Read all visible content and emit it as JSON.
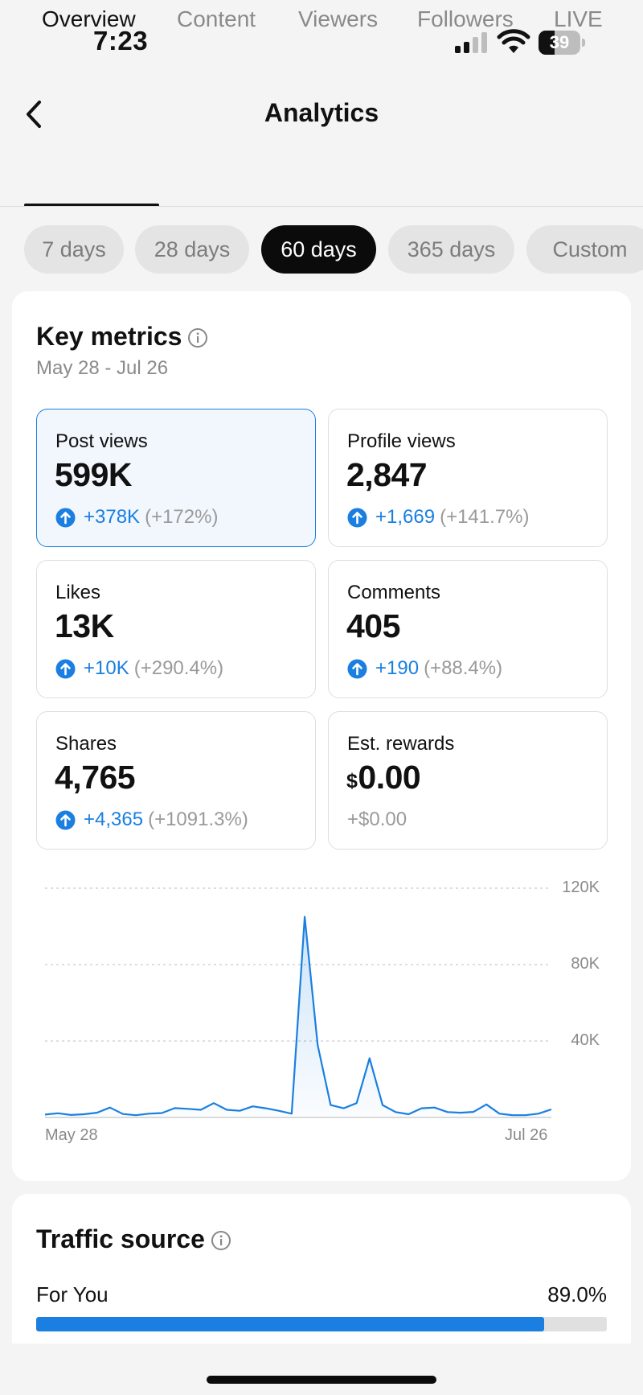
{
  "status_bar": {
    "time": "7:23",
    "battery_level": "39",
    "battery_fraction": 0.39,
    "icons": [
      "cellular-signal-icon",
      "wifi-icon",
      "battery-icon"
    ]
  },
  "header": {
    "title": "Analytics",
    "back_icon": "chevron-left-icon"
  },
  "tabs": [
    {
      "label": "Overview",
      "active": true
    },
    {
      "label": "Content",
      "active": false
    },
    {
      "label": "Viewers",
      "active": false
    },
    {
      "label": "Followers",
      "active": false
    },
    {
      "label": "LIVE",
      "active": false
    }
  ],
  "date_ranges": [
    {
      "label": "7 days",
      "active": false
    },
    {
      "label": "28 days",
      "active": false
    },
    {
      "label": "60 days",
      "active": true
    },
    {
      "label": "365 days",
      "active": false
    },
    {
      "label": "Custom",
      "active": false
    }
  ],
  "key_metrics": {
    "title": "Key metrics",
    "date_range": "May 28 - Jul 26",
    "metrics": [
      {
        "label": "Post views",
        "value": "599K",
        "change": "+378K",
        "change_pct": "(+172%)",
        "selected": true
      },
      {
        "label": "Profile views",
        "value": "2,847",
        "change": "+1,669",
        "change_pct": "(+141.7%)",
        "selected": false
      },
      {
        "label": "Likes",
        "value": "13K",
        "change": "+10K",
        "change_pct": "(+290.4%)",
        "selected": false
      },
      {
        "label": "Comments",
        "value": "405",
        "change": "+190",
        "change_pct": "(+88.4%)",
        "selected": false
      },
      {
        "label": "Shares",
        "value": "4,765",
        "change": "+4,365",
        "change_pct": "(+1091.3%)",
        "selected": false
      },
      {
        "label": "Est. rewards",
        "currency": "$",
        "value": "0.00",
        "change_plain": "+$0.00",
        "selected": false
      }
    ]
  },
  "chart_data": {
    "type": "area",
    "series": [
      {
        "color": "#1a7fe0",
        "values": [
          1500,
          2200,
          1300,
          1700,
          2500,
          5200,
          1800,
          1200,
          2000,
          2300,
          4900,
          4500,
          4000,
          7500,
          4000,
          3500,
          5800,
          4800,
          3500,
          2000,
          105000,
          38000,
          6500,
          4800,
          7500,
          31000,
          6500,
          2800,
          1700,
          4800,
          5200,
          2800,
          2500,
          2900,
          6800,
          2000,
          1200,
          1200,
          2000,
          4200
        ]
      }
    ],
    "x_labels": [
      "May 28",
      "Jul 26"
    ],
    "y_ticks": [
      "120K",
      "80K",
      "40K"
    ],
    "ylim": [
      0,
      120000
    ],
    "grid": true,
    "fill": "light blue gradient"
  },
  "traffic_source": {
    "title": "Traffic source",
    "rows": [
      {
        "label": "For You",
        "value": "89.0%",
        "fraction": 0.89
      }
    ]
  },
  "colors": {
    "accent": "#1a7fe0",
    "active_chip": "#0b0b0b",
    "background": "#f4f4f4"
  }
}
